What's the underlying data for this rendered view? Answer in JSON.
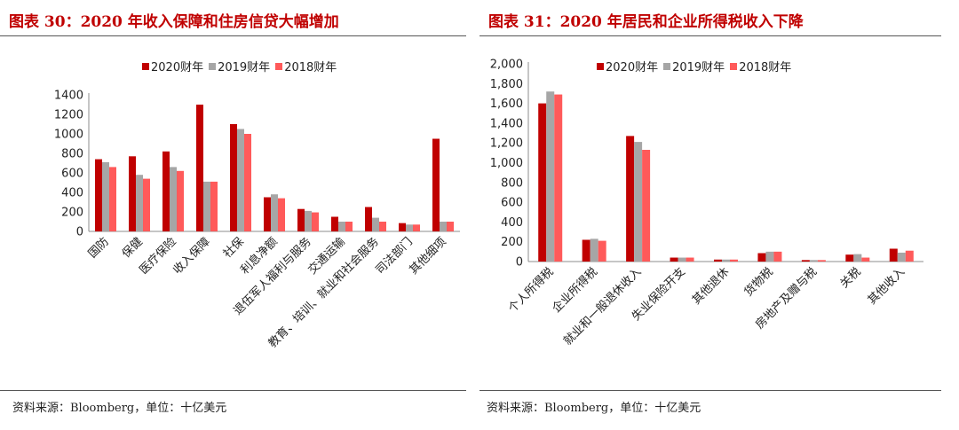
{
  "left": {
    "title": "图表 30：2020 年收入保障和住房信贷大幅增加",
    "source": "资料来源：Bloomberg，单位：十亿美元"
  },
  "right": {
    "title": "图表 31：2020 年居民和企业所得税收入下降",
    "source": "资料来源：Bloomberg，单位：十亿美元"
  },
  "colors": {
    "2020": "#c00000",
    "2019": "#a6a6a6",
    "2018": "#ff5a5a"
  },
  "chart_data": [
    {
      "type": "bar",
      "title": "图表 30：2020 年收入保障和住房信贷大幅增加",
      "categories": [
        "国防",
        "保健",
        "医疗保险",
        "收入保障",
        "社保",
        "利息净额",
        "退伍军人福利与服务",
        "交通运输",
        "教育、培训、就业和社会服务",
        "司法部门",
        "其他细项"
      ],
      "series": [
        {
          "name": "2020财年",
          "values": [
            740,
            770,
            820,
            1300,
            1100,
            350,
            230,
            150,
            250,
            85,
            950
          ]
        },
        {
          "name": "2019财年",
          "values": [
            710,
            580,
            660,
            510,
            1050,
            380,
            210,
            100,
            140,
            70,
            100
          ]
        },
        {
          "name": "2018财年",
          "values": [
            660,
            540,
            620,
            510,
            1000,
            340,
            195,
            100,
            100,
            70,
            100
          ]
        }
      ],
      "yticks": [
        "0",
        "200",
        "400",
        "600",
        "800",
        "1000",
        "1200",
        "1400"
      ],
      "ylim": [
        0,
        1400
      ],
      "legend": "top-center"
    },
    {
      "type": "bar",
      "title": "图表 31：2020 年居民和企业所得税收入下降",
      "categories": [
        "个人所得税",
        "企业所得税",
        "就业和一般退休收入",
        "失业保险开支",
        "其他退休",
        "货物税",
        "房地产及赠与税",
        "关税",
        "其他收入"
      ],
      "series": [
        {
          "name": "2020财年",
          "values": [
            1600,
            220,
            1270,
            40,
            20,
            85,
            15,
            70,
            130
          ]
        },
        {
          "name": "2019财年",
          "values": [
            1720,
            230,
            1210,
            40,
            20,
            100,
            15,
            75,
            90
          ]
        },
        {
          "name": "2018财年",
          "values": [
            1690,
            210,
            1130,
            40,
            20,
            100,
            15,
            40,
            110
          ]
        }
      ],
      "yticks": [
        "0",
        "200",
        "400",
        "600",
        "800",
        "1,000",
        "1,200",
        "1,400",
        "1,600",
        "1,800",
        "2,000"
      ],
      "ylim": [
        0,
        2000
      ],
      "legend": "top-center"
    }
  ]
}
